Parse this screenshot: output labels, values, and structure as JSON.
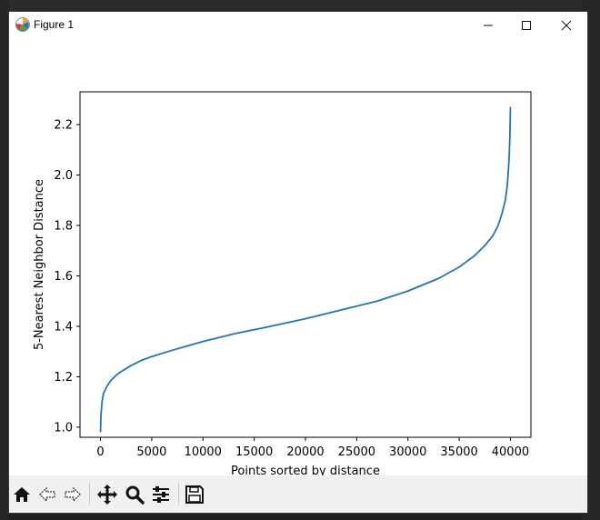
{
  "window": {
    "title": "Figure 1",
    "minimize_icon": "minimize-icon",
    "maximize_icon": "maximize-icon",
    "close_icon": "close-icon"
  },
  "toolbar": {
    "tools": [
      {
        "name": "home",
        "icon": "home-icon"
      },
      {
        "name": "back",
        "icon": "back-arrow-icon"
      },
      {
        "name": "forward",
        "icon": "forward-arrow-icon"
      },
      {
        "name": "pan",
        "icon": "move-icon"
      },
      {
        "name": "zoom",
        "icon": "zoom-icon"
      },
      {
        "name": "configure-subplots",
        "icon": "sliders-icon"
      },
      {
        "name": "save",
        "icon": "save-icon"
      }
    ]
  },
  "chart_data": {
    "type": "line",
    "title": "",
    "xlabel": "Points sorted by distance",
    "ylabel": "5-Nearest Neighbor Distance",
    "xlim": [
      -2000,
      42000
    ],
    "ylim": [
      0.96,
      2.33
    ],
    "x_ticks": [
      0,
      5000,
      10000,
      15000,
      20000,
      25000,
      30000,
      35000,
      40000
    ],
    "y_ticks": [
      1.0,
      1.2,
      1.4,
      1.6,
      1.8,
      2.0,
      2.2
    ],
    "x_tick_labels": [
      "0",
      "5000",
      "10000",
      "15000",
      "20000",
      "25000",
      "30000",
      "35000",
      "40000"
    ],
    "y_tick_labels": [
      "1.0",
      "1.2",
      "1.4",
      "1.6",
      "1.8",
      "2.0",
      "2.2"
    ],
    "grid": false,
    "color": "#1f77b4",
    "series": [
      {
        "x": [
          0,
          50,
          150,
          300,
          600,
          1000,
          1500,
          2000,
          3000,
          4000,
          5000,
          7000,
          10000,
          13000,
          16000,
          20000,
          24000,
          27000,
          30000,
          33000,
          35000,
          36500,
          37500,
          38300,
          38800,
          39200,
          39500,
          39700,
          39850,
          39950,
          40000
        ],
        "y": [
          0.98,
          1.05,
          1.1,
          1.135,
          1.16,
          1.185,
          1.205,
          1.22,
          1.245,
          1.265,
          1.28,
          1.305,
          1.34,
          1.37,
          1.395,
          1.43,
          1.47,
          1.5,
          1.54,
          1.59,
          1.635,
          1.68,
          1.72,
          1.76,
          1.8,
          1.85,
          1.9,
          1.96,
          2.05,
          2.15,
          2.27
        ]
      }
    ]
  }
}
